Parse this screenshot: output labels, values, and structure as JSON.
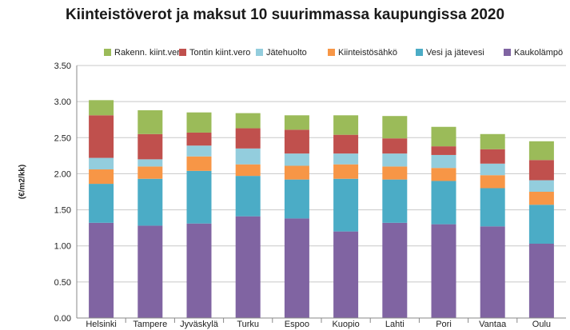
{
  "chart_data": {
    "type": "bar",
    "stacked": true,
    "title": "Kiinteistöverot ja maksut 10 suurimmassa kaupungissa 2020",
    "xlabel": "",
    "ylabel": "(€/m2/kk)",
    "ylim": [
      0,
      3.5
    ],
    "yticks": [
      "0.00",
      "0.50",
      "1.00",
      "1.50",
      "2.00",
      "2.50",
      "3.00",
      "3.50"
    ],
    "grid": true,
    "legend_position": "top",
    "categories": [
      "Helsinki",
      "Tampere",
      "Jyväskylä",
      "Turku",
      "Espoo",
      "Kuopio",
      "Lahti",
      "Pori",
      "Vantaa",
      "Oulu"
    ],
    "series": [
      {
        "name": "Kaukolämpö",
        "color": "#8064a2",
        "values": [
          1.32,
          1.28,
          1.31,
          1.41,
          1.38,
          1.2,
          1.32,
          1.3,
          1.27,
          1.03
        ]
      },
      {
        "name": "Vesi ja jätevesi",
        "color": "#4bacc6",
        "values": [
          0.54,
          0.65,
          0.73,
          0.56,
          0.54,
          0.73,
          0.6,
          0.6,
          0.53,
          0.54
        ]
      },
      {
        "name": "Kiinteistösähkö",
        "color": "#f79646",
        "values": [
          0.2,
          0.17,
          0.2,
          0.16,
          0.19,
          0.2,
          0.18,
          0.18,
          0.18,
          0.18
        ]
      },
      {
        "name": "Jätehuolto",
        "color": "#93cddd",
        "values": [
          0.16,
          0.1,
          0.15,
          0.22,
          0.17,
          0.15,
          0.18,
          0.18,
          0.16,
          0.16
        ]
      },
      {
        "name": "Tontin kiint.vero",
        "color": "#c0504d",
        "values": [
          0.59,
          0.35,
          0.18,
          0.28,
          0.33,
          0.26,
          0.21,
          0.12,
          0.2,
          0.28
        ]
      },
      {
        "name": "Rakenn. kiint.vero",
        "color": "#9bbb59",
        "values": [
          0.21,
          0.33,
          0.28,
          0.21,
          0.2,
          0.27,
          0.31,
          0.27,
          0.21,
          0.26
        ]
      }
    ]
  },
  "legend_order": [
    5,
    4,
    3,
    2,
    1,
    0
  ]
}
